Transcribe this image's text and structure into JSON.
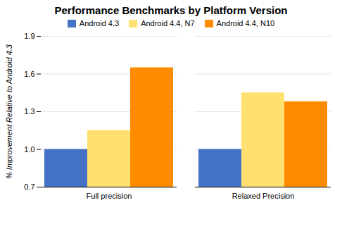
{
  "chart_data": {
    "type": "bar",
    "title": "Performance Benchmarks by Platform Version",
    "ylabel": "% Improvement Relative to Android 4.3",
    "categories": [
      "Full precision",
      "Relaxed Precision"
    ],
    "series": [
      {
        "name": "Android 4.3",
        "color": "#4472C4",
        "values": [
          1.0,
          1.0
        ]
      },
      {
        "name": "Android 4.4, N7",
        "color": "#FFE070",
        "values": [
          1.15,
          1.45
        ]
      },
      {
        "name": "Android 4.4, N10",
        "color": "#FF8C00",
        "values": [
          1.65,
          1.38
        ]
      }
    ],
    "ylim": [
      0.7,
      1.9
    ],
    "yticks": [
      0.7,
      {
        "value": 1.0,
        "label": "1.0"
      },
      1.3,
      1.6,
      1.9
    ],
    "grid": true,
    "legend": "top"
  }
}
